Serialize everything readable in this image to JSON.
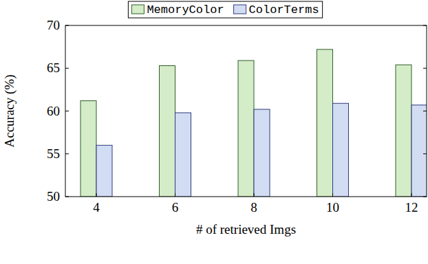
{
  "chart_data": {
    "type": "bar",
    "categories": [
      "4",
      "6",
      "8",
      "10",
      "12"
    ],
    "series": [
      {
        "name": "MemoryColor",
        "color": "#d4ecc8",
        "values": [
          61.2,
          65.3,
          65.9,
          67.2,
          65.4
        ]
      },
      {
        "name": "ColorTerms",
        "color": "#d2dcf2",
        "values": [
          56.0,
          59.8,
          60.2,
          60.9,
          60.7
        ]
      }
    ],
    "x_label": "# of retrieved Imgs",
    "y_label": "Accuracy (%)",
    "ylim": [
      50,
      70
    ],
    "yticks": [
      50,
      55,
      60,
      65,
      70
    ],
    "grid": false,
    "legend": "top"
  }
}
